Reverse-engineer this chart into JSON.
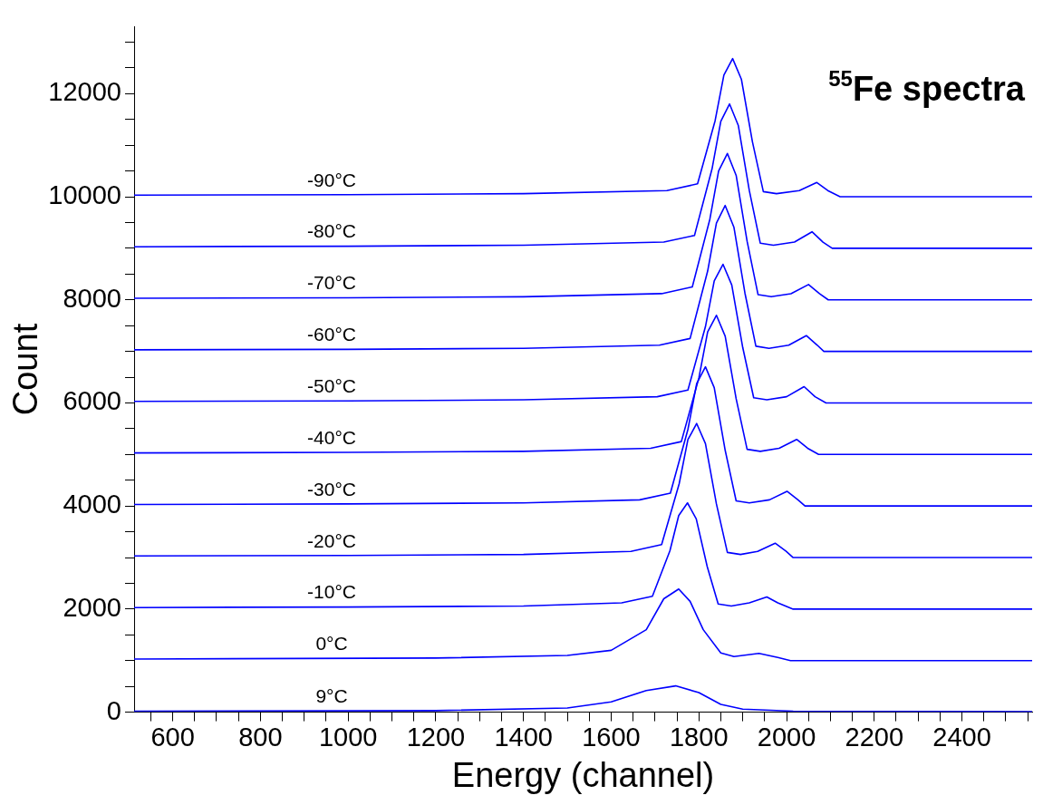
{
  "chart_data": {
    "type": "line",
    "title": "$^{55}$Fe spectra",
    "xlabel": "Energy (channel)",
    "ylabel": "Count",
    "legend": false,
    "grid": false,
    "marker": "none",
    "line_style": "solid",
    "xlim": [
      512,
      2560
    ],
    "ylim": [
      0,
      13300
    ],
    "xticks": [
      {
        "value": 550,
        "label": null
      },
      600,
      {
        "value": 650,
        "label": null
      },
      {
        "value": 700,
        "label": null
      },
      {
        "value": 750,
        "label": null
      },
      800,
      {
        "value": 850,
        "label": null
      },
      {
        "value": 900,
        "label": null
      },
      {
        "value": 950,
        "label": null
      },
      1000,
      {
        "value": 1050,
        "label": null
      },
      {
        "value": 1100,
        "label": null
      },
      {
        "value": 1150,
        "label": null
      },
      1200,
      {
        "value": 1250,
        "label": null
      },
      {
        "value": 1300,
        "label": null
      },
      {
        "value": 1350,
        "label": null
      },
      1400,
      {
        "value": 1450,
        "label": null
      },
      {
        "value": 1500,
        "label": null
      },
      {
        "value": 1550,
        "label": null
      },
      1600,
      {
        "value": 1650,
        "label": null
      },
      {
        "value": 1700,
        "label": null
      },
      {
        "value": 1750,
        "label": null
      },
      1800,
      {
        "value": 1850,
        "label": null
      },
      {
        "value": 1900,
        "label": null
      },
      {
        "value": 1950,
        "label": null
      },
      2000,
      {
        "value": 2050,
        "label": null
      },
      {
        "value": 2100,
        "label": null
      },
      {
        "value": 2150,
        "label": null
      },
      2200,
      {
        "value": 2250,
        "label": null
      },
      {
        "value": 2300,
        "label": null
      },
      {
        "value": 2350,
        "label": null
      },
      2400,
      {
        "value": 2450,
        "label": null
      },
      {
        "value": 2500,
        "label": null
      },
      {
        "value": 2550,
        "label": null
      }
    ],
    "yticks": [
      0,
      {
        "value": 500,
        "label": null
      },
      {
        "value": 1000,
        "label": null
      },
      {
        "value": 1500,
        "label": null
      },
      2000,
      {
        "value": 2500,
        "label": null
      },
      {
        "value": 3000,
        "label": null
      },
      {
        "value": 3500,
        "label": null
      },
      4000,
      {
        "value": 4500,
        "label": null
      },
      {
        "value": 5000,
        "label": null
      },
      {
        "value": 5500,
        "label": null
      },
      6000,
      {
        "value": 6500,
        "label": null
      },
      {
        "value": 7000,
        "label": null
      },
      {
        "value": 7500,
        "label": null
      },
      8000,
      {
        "value": 8500,
        "label": null
      },
      {
        "value": 9000,
        "label": null
      },
      {
        "value": 9500,
        "label": null
      },
      10000,
      {
        "value": 10500,
        "label": null
      },
      {
        "value": 11000,
        "label": null
      },
      {
        "value": 11500,
        "label": null
      },
      12000,
      {
        "value": 12500,
        "label": null
      },
      {
        "value": 13000,
        "label": null
      }
    ],
    "series": [
      {
        "name": "-90°C",
        "color": "#0000ff",
        "x": [
          512,
          1000,
          1400,
          1727,
          1797,
          1837,
          1857,
          1877,
          1897,
          1922,
          1947,
          1977,
          2029,
          2069,
          2094,
          2122,
          2560
        ],
        "values": [
          10030,
          10040,
          10060,
          10120,
          10250,
          11474,
          12358,
          12680,
          12278,
          11072,
          10100,
          10060,
          10120,
          10277,
          10120,
          10000,
          10000
        ]
      },
      {
        "name": "-80°C",
        "color": "#0000ff",
        "x": [
          512,
          1000,
          1400,
          1720,
          1790,
          1830,
          1850,
          1870,
          1890,
          1915,
          1940,
          1970,
          2018,
          2058,
          2083,
          2104,
          2560
        ],
        "values": [
          9030,
          9040,
          9060,
          9120,
          9250,
          10540,
          11464,
          11800,
          11380,
          10120,
          9100,
          9060,
          9120,
          9320,
          9120,
          9000,
          9000
        ]
      },
      {
        "name": "-70°C",
        "color": "#0000ff",
        "x": [
          512,
          1000,
          1400,
          1715,
          1785,
          1825,
          1845,
          1865,
          1885,
          1910,
          1935,
          1965,
          2010,
          2050,
          2075,
          2095,
          2560
        ],
        "values": [
          8030,
          8040,
          8060,
          8120,
          8250,
          9562,
          10499,
          10840,
          10414,
          9136,
          8100,
          8060,
          8120,
          8296,
          8120,
          8000,
          8000
        ]
      },
      {
        "name": "-60°C",
        "color": "#0000ff",
        "x": [
          512,
          1000,
          1400,
          1710,
          1780,
          1820,
          1840,
          1860,
          1880,
          1905,
          1930,
          1960,
          2005,
          2045,
          2070,
          2085,
          2560
        ],
        "values": [
          7030,
          7040,
          7060,
          7120,
          7250,
          8557,
          9490,
          9830,
          9406,
          8132,
          7100,
          7060,
          7120,
          7306,
          7120,
          7000,
          7000
        ]
      },
      {
        "name": "-50°C",
        "color": "#0000ff",
        "x": [
          512,
          1000,
          1400,
          1705,
          1775,
          1815,
          1835,
          1855,
          1875,
          1900,
          1925,
          1955,
          2000,
          2040,
          2065,
          2090,
          2560
        ],
        "values": [
          6030,
          6040,
          6060,
          6120,
          6250,
          7480,
          8367,
          8690,
          8287,
          7076,
          6100,
          6060,
          6120,
          6316,
          6120,
          6000,
          6000
        ]
      },
      {
        "name": "-40°C",
        "color": "#0000ff",
        "x": [
          512,
          1000,
          1400,
          1690,
          1760,
          1800,
          1820,
          1840,
          1860,
          1885,
          1910,
          1940,
          1983,
          2023,
          2048,
          2073,
          2560
        ],
        "values": [
          5030,
          5040,
          5060,
          5120,
          5250,
          6485,
          7376,
          7700,
          7295,
          6080,
          5100,
          5060,
          5120,
          5292,
          5120,
          5000,
          5000
        ]
      },
      {
        "name": "-30°C",
        "color": "#0000ff",
        "x": [
          512,
          1000,
          1400,
          1665,
          1735,
          1775,
          1795,
          1815,
          1835,
          1860,
          1885,
          1915,
          1961,
          2001,
          2026,
          2042,
          2560
        ],
        "values": [
          4030,
          4040,
          4060,
          4120,
          4250,
          5485,
          6376,
          6700,
          6295,
          5080,
          4100,
          4060,
          4120,
          4285,
          4120,
          4000,
          4000
        ]
      },
      {
        "name": "-20°C",
        "color": "#0000ff",
        "x": [
          512,
          1000,
          1400,
          1645,
          1715,
          1755,
          1775,
          1795,
          1815,
          1840,
          1865,
          1895,
          1934,
          1974,
          1999,
          2015,
          2560
        ],
        "values": [
          3030,
          3040,
          3060,
          3120,
          3250,
          4430,
          5288,
          5600,
          5210,
          4040,
          3100,
          3060,
          3120,
          3278,
          3120,
          3000,
          3000
        ]
      },
      {
        "name": "-10°C",
        "color": "#0000ff",
        "x": [
          512,
          1000,
          1400,
          1624,
          1694,
          1734,
          1754,
          1774,
          1794,
          1819,
          1844,
          1874,
          1915,
          1955,
          1980,
          2015,
          2560
        ],
        "values": [
          2030,
          2040,
          2060,
          2120,
          2250,
          3133,
          3813,
          4060,
          3751,
          2824,
          2100,
          2060,
          2120,
          2236,
          2120,
          2000,
          2000
        ]
      },
      {
        "name": "0°C",
        "color": "#0000ff",
        "x": [
          512,
          1200,
          1500,
          1600,
          1680,
          1720,
          1754,
          1780,
          1810,
          1850,
          1880,
          1937,
          1980,
          2009,
          2560
        ],
        "values": [
          1030,
          1050,
          1100,
          1200,
          1600,
          2200,
          2390,
          2150,
          1600,
          1150,
          1080,
          1140,
          1060,
          1000,
          1000
        ]
      },
      {
        "name": "9°C",
        "color": "#0000ff",
        "x": [
          512,
          1200,
          1500,
          1600,
          1680,
          1747,
          1800,
          1850,
          1900,
          2015,
          2560
        ],
        "values": [
          20,
          30,
          80,
          200,
          420,
          510,
          380,
          150,
          60,
          20,
          10
        ]
      }
    ]
  }
}
